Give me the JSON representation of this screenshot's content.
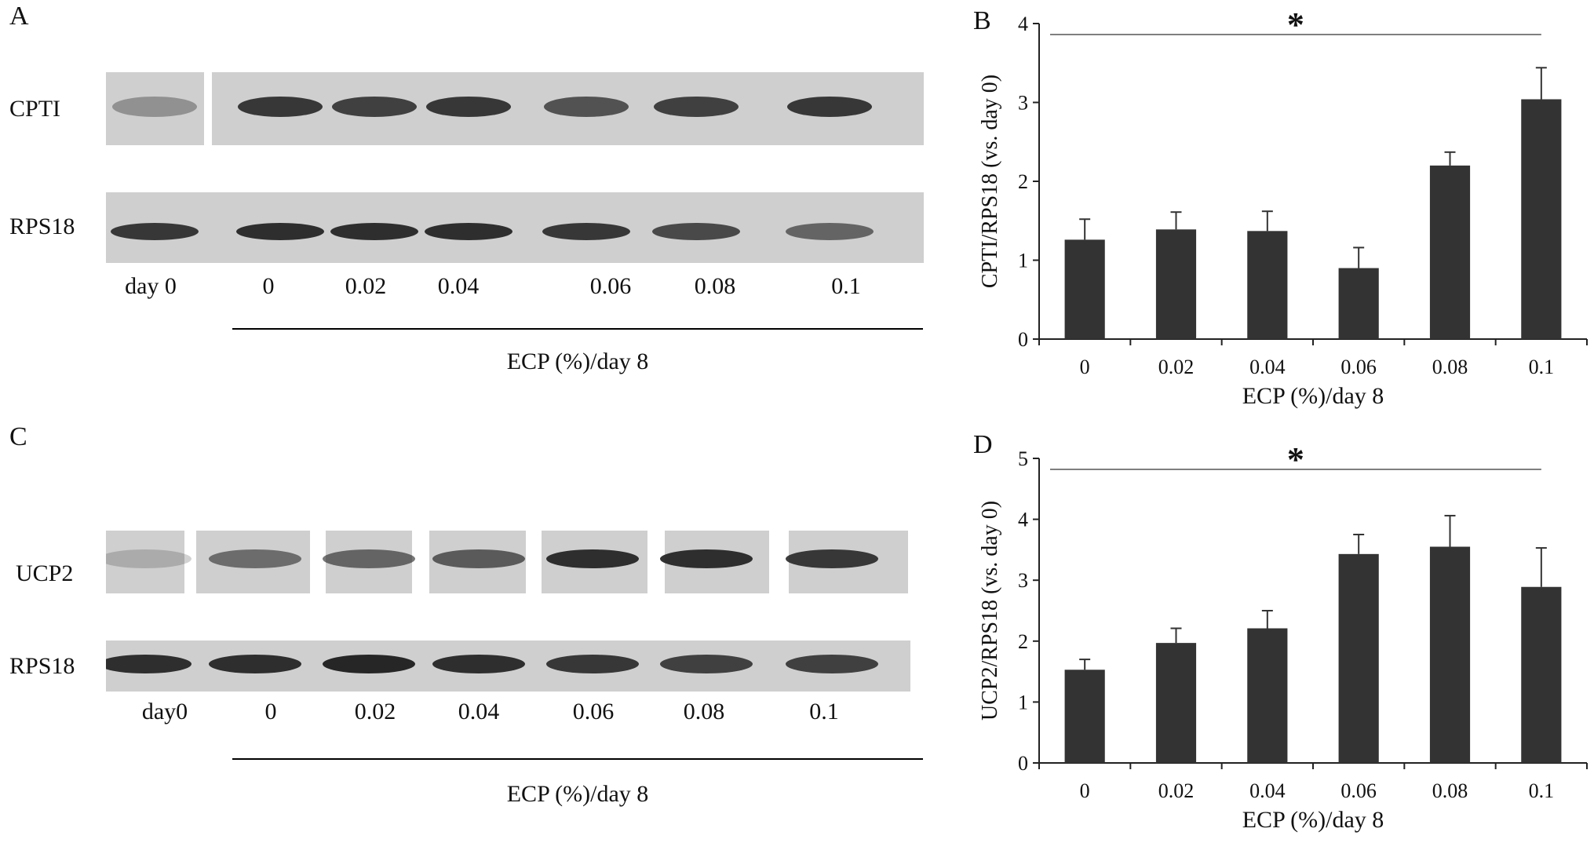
{
  "panels": {
    "a": {
      "letter": "A",
      "blots": [
        "CPTI",
        "RPS18"
      ],
      "lanes": [
        "day 0",
        "0",
        "0.02",
        "0.04",
        "0.06",
        "0.08",
        "0.1"
      ],
      "group_caption": "ECP (%)/day 8"
    },
    "b": {
      "letter": "B"
    },
    "c": {
      "letter": "C",
      "blots": [
        "UCP2",
        "RPS18"
      ],
      "lanes": [
        "day0",
        "0",
        "0.02",
        "0.04",
        "0.06",
        "0.08",
        "0.1"
      ],
      "group_caption": "ECP (%)/day 8"
    },
    "d": {
      "letter": "D"
    }
  },
  "blot_style": {
    "membrane_color": "#cfcfcf",
    "band_color": "#1c1c1c",
    "band_intensity": {
      "cpti": [
        0.35,
        0.85,
        0.8,
        0.85,
        0.7,
        0.8,
        0.85
      ],
      "rps18_a": [
        0.85,
        0.9,
        0.9,
        0.9,
        0.85,
        0.75,
        0.6
      ],
      "ucp2": [
        0.2,
        0.55,
        0.6,
        0.65,
        0.9,
        0.9,
        0.85
      ],
      "rps18_c": [
        0.9,
        0.9,
        0.95,
        0.9,
        0.85,
        0.8,
        0.8
      ]
    }
  },
  "chart_data": [
    {
      "type": "bar",
      "categories": [
        "0",
        "0.02",
        "0.04",
        "0.06",
        "0.08",
        "0.1"
      ],
      "values": [
        1.26,
        1.39,
        1.37,
        0.9,
        2.2,
        3.04
      ],
      "errors": [
        0.26,
        0.22,
        0.25,
        0.26,
        0.17,
        0.4
      ],
      "xlabel": "ECP (%)/day 8",
      "ylabel": "CPTI/RPS18 (vs. day 0)",
      "ylim": [
        0,
        4
      ],
      "yticks": [
        "0",
        "1",
        "2",
        "3",
        "4"
      ],
      "significance": "*",
      "bar_color": "#333333"
    },
    {
      "type": "bar",
      "categories": [
        "0",
        "0.02",
        "0.04",
        "0.06",
        "0.08",
        "0.1"
      ],
      "values": [
        1.53,
        1.97,
        2.21,
        3.43,
        3.55,
        2.89
      ],
      "errors": [
        0.17,
        0.24,
        0.29,
        0.32,
        0.51,
        0.64
      ],
      "xlabel": "ECP (%)/day 8",
      "ylabel": "UCP2/RPS18 (vs. day 0)",
      "ylim": [
        0,
        5
      ],
      "yticks": [
        "0",
        "1",
        "2",
        "3",
        "4",
        "5"
      ],
      "significance": "*",
      "bar_color": "#333333"
    }
  ]
}
